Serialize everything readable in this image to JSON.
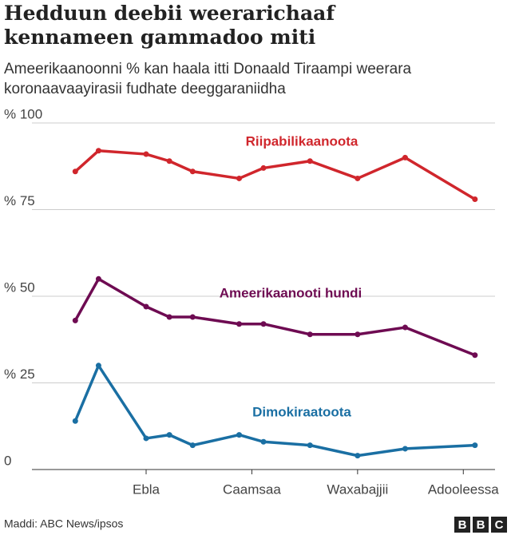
{
  "chart_data": {
    "type": "line",
    "title": "Hedduun deebii weerarichaaf kennameen gammadoo miti",
    "subtitle": "Ameerikaanoonni % kan haala itti Donaald Tiraampi weerara koronaavaayirasii fudhate deeggaraniidha",
    "x": [
      3.33,
      3.55,
      4.0,
      4.22,
      4.44,
      4.88,
      5.11,
      5.55,
      6.0,
      6.45,
      7.11
    ],
    "xlim": [
      2.92,
      7.3
    ],
    "xticks": [
      {
        "value": 4,
        "label": "Ebla"
      },
      {
        "value": 5,
        "label": "Caamsaa"
      },
      {
        "value": 6,
        "label": "Waxabajjii"
      },
      {
        "value": 7,
        "label": "Adooleessa"
      }
    ],
    "ylim": [
      0,
      100
    ],
    "yticks": [
      0,
      {
        "value": 25,
        "label": "% 25"
      },
      {
        "value": 50,
        "label": "% 50"
      },
      {
        "value": 75,
        "label": "% 75"
      },
      {
        "value": 100,
        "label": "% 100"
      }
    ],
    "grid": true,
    "series": [
      {
        "name": "Riipabilikaanoota",
        "color": "#d0262c",
        "values": [
          86,
          92,
          91,
          89,
          86,
          84,
          87,
          89,
          84,
          90,
          78
        ]
      },
      {
        "name": "Ameerikaanooti hundi",
        "color": "#6e0b52",
        "values": [
          43,
          55,
          47,
          44,
          44,
          42,
          42,
          39,
          39,
          41,
          33
        ]
      },
      {
        "name": "Dimokiraatoota",
        "color": "#1a6fa3",
        "values": [
          14,
          30,
          9,
          10,
          7,
          10,
          8,
          7,
          4,
          6,
          7
        ]
      }
    ],
    "source": "Maddi: ABC News/ipsos",
    "logo": [
      "B",
      "B",
      "C"
    ]
  }
}
